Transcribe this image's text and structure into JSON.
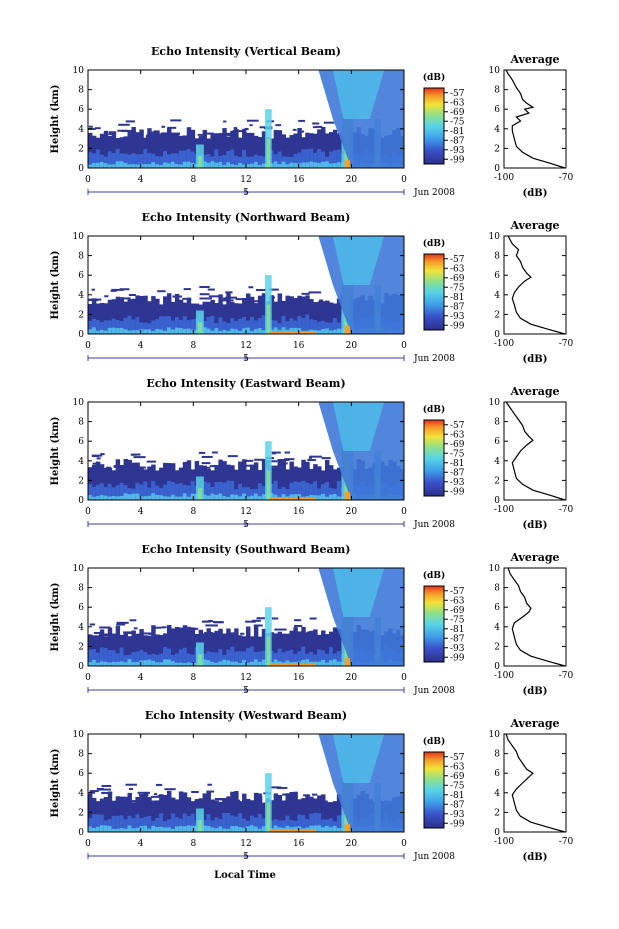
{
  "figure": {
    "xlabel_bottom": "Local Time",
    "date_label": "Jun 2008",
    "day_label": "5"
  },
  "chart_data": [
    {
      "type": "heatmap",
      "title": "Echo Intensity (Vertical Beam)",
      "ylabel": "Height (km)",
      "xlim": [
        0,
        24
      ],
      "ylim": [
        0,
        10
      ],
      "xticks": [
        "0",
        "4",
        "8",
        "12",
        "16",
        "20",
        "0"
      ],
      "yticks": [
        "0",
        "2",
        "4",
        "6",
        "8",
        "10"
      ],
      "colorbar": {
        "label": "(dB)",
        "ticks": [
          "-57",
          "-63",
          "-69",
          "-75",
          "-81",
          "-87",
          "-93",
          "-99"
        ]
      },
      "profile": {
        "type": "line",
        "title": "Average",
        "xlabel": "(dB)",
        "xticks": [
          "-100",
          "-70"
        ],
        "xlim": [
          -100,
          -70
        ],
        "yticks": [
          "0",
          "2",
          "4",
          "6",
          "8",
          "10"
        ],
        "ylim": [
          0,
          10
        ],
        "points": [
          [
            -70.5,
            0
          ],
          [
            -78,
            0.5
          ],
          [
            -86,
            1
          ],
          [
            -91,
            1.6
          ],
          [
            -94,
            2.2
          ],
          [
            -95,
            3
          ],
          [
            -96,
            3.8
          ],
          [
            -96,
            4.3
          ],
          [
            -92,
            4.8
          ],
          [
            -94,
            5.2
          ],
          [
            -88,
            5.6
          ],
          [
            -90,
            6
          ],
          [
            -86,
            6.2
          ],
          [
            -89,
            6.6
          ],
          [
            -91,
            7
          ],
          [
            -92,
            7.6
          ],
          [
            -94,
            8.2
          ],
          [
            -96,
            9
          ],
          [
            -98,
            9.6
          ],
          [
            -99,
            10
          ]
        ]
      }
    },
    {
      "type": "heatmap",
      "title": "Echo Intensity (Northward Beam)",
      "ylabel": "Height (km)",
      "xlim": [
        0,
        24
      ],
      "ylim": [
        0,
        10
      ],
      "xticks": [
        "0",
        "4",
        "8",
        "12",
        "16",
        "20",
        "0"
      ],
      "yticks": [
        "0",
        "2",
        "4",
        "6",
        "8",
        "10"
      ],
      "colorbar": {
        "label": "(dB)",
        "ticks": [
          "-57",
          "-63",
          "-69",
          "-75",
          "-81",
          "-87",
          "-93",
          "-99"
        ]
      },
      "profile": {
        "type": "line",
        "title": "Average",
        "xlabel": "(dB)",
        "xticks": [
          "-100",
          "-70"
        ],
        "xlim": [
          -100,
          -70
        ],
        "yticks": [
          "0",
          "2",
          "4",
          "6",
          "8",
          "10"
        ],
        "ylim": [
          0,
          10
        ],
        "points": [
          [
            -70.5,
            0
          ],
          [
            -79,
            0.5
          ],
          [
            -87,
            1
          ],
          [
            -92,
            1.6
          ],
          [
            -94,
            2.2
          ],
          [
            -95,
            3
          ],
          [
            -96,
            3.6
          ],
          [
            -95,
            4.2
          ],
          [
            -93,
            4.8
          ],
          [
            -90,
            5.4
          ],
          [
            -87,
            5.8
          ],
          [
            -89,
            6.2
          ],
          [
            -91,
            6.8
          ],
          [
            -92,
            7.4
          ],
          [
            -94,
            8
          ],
          [
            -93,
            8.6
          ],
          [
            -96,
            9.2
          ],
          [
            -98,
            10
          ]
        ]
      }
    },
    {
      "type": "heatmap",
      "title": "Echo Intensity (Eastward Beam)",
      "ylabel": "Height (km)",
      "xlim": [
        0,
        24
      ],
      "ylim": [
        0,
        10
      ],
      "xticks": [
        "0",
        "4",
        "8",
        "12",
        "16",
        "20",
        "0"
      ],
      "yticks": [
        "0",
        "2",
        "4",
        "6",
        "8",
        "10"
      ],
      "colorbar": {
        "label": "(dB)",
        "ticks": [
          "-57",
          "-63",
          "-69",
          "-75",
          "-81",
          "-87",
          "-93",
          "-99"
        ]
      },
      "profile": {
        "type": "line",
        "title": "Average",
        "xlabel": "(dB)",
        "xticks": [
          "-100",
          "-70"
        ],
        "xlim": [
          -100,
          -70
        ],
        "yticks": [
          "0",
          "2",
          "4",
          "6",
          "8",
          "10"
        ],
        "ylim": [
          0,
          10
        ],
        "points": [
          [
            -70.5,
            0
          ],
          [
            -78,
            0.5
          ],
          [
            -86,
            1
          ],
          [
            -91,
            1.6
          ],
          [
            -94,
            2.2
          ],
          [
            -95,
            3
          ],
          [
            -96,
            3.8
          ],
          [
            -94,
            4.4
          ],
          [
            -92,
            5
          ],
          [
            -89,
            5.6
          ],
          [
            -86,
            6.1
          ],
          [
            -88,
            6.5
          ],
          [
            -90,
            7
          ],
          [
            -91,
            7.6
          ],
          [
            -93,
            8.2
          ],
          [
            -95,
            8.8
          ],
          [
            -97,
            9.4
          ],
          [
            -99,
            10
          ]
        ]
      }
    },
    {
      "type": "heatmap",
      "title": "Echo Intensity (Southward Beam)",
      "ylabel": "Height (km)",
      "xlim": [
        0,
        24
      ],
      "ylim": [
        0,
        10
      ],
      "xticks": [
        "0",
        "4",
        "8",
        "12",
        "16",
        "20",
        "0"
      ],
      "yticks": [
        "0",
        "2",
        "4",
        "6",
        "8",
        "10"
      ],
      "colorbar": {
        "label": "(dB)",
        "ticks": [
          "-57",
          "-63",
          "-69",
          "-75",
          "-81",
          "-87",
          "-93",
          "-99"
        ]
      },
      "profile": {
        "type": "line",
        "title": "Average",
        "xlabel": "(dB)",
        "xticks": [
          "-100",
          "-70"
        ],
        "xlim": [
          -100,
          -70
        ],
        "yticks": [
          "0",
          "2",
          "4",
          "6",
          "8",
          "10"
        ],
        "ylim": [
          0,
          10
        ],
        "points": [
          [
            -70.5,
            0
          ],
          [
            -79,
            0.5
          ],
          [
            -87,
            1
          ],
          [
            -92,
            1.6
          ],
          [
            -94,
            2.2
          ],
          [
            -95,
            3
          ],
          [
            -96,
            3.8
          ],
          [
            -95,
            4.4
          ],
          [
            -91,
            5
          ],
          [
            -88,
            5.5
          ],
          [
            -87,
            5.9
          ],
          [
            -89,
            6.4
          ],
          [
            -90,
            7
          ],
          [
            -92,
            7.6
          ],
          [
            -93,
            8.2
          ],
          [
            -95,
            8.8
          ],
          [
            -97,
            9.4
          ],
          [
            -98,
            10
          ]
        ]
      }
    },
    {
      "type": "heatmap",
      "title": "Echo Intensity (Westward Beam)",
      "ylabel": "Height (km)",
      "xlim": [
        0,
        24
      ],
      "ylim": [
        0,
        10
      ],
      "xticks": [
        "0",
        "4",
        "8",
        "12",
        "16",
        "20",
        "0"
      ],
      "yticks": [
        "0",
        "2",
        "4",
        "6",
        "8",
        "10"
      ],
      "colorbar": {
        "label": "(dB)",
        "ticks": [
          "-57",
          "-63",
          "-69",
          "-75",
          "-81",
          "-87",
          "-93",
          "-99"
        ]
      },
      "profile": {
        "type": "line",
        "title": "Average",
        "xlabel": "(dB)",
        "xticks": [
          "-100",
          "-70"
        ],
        "xlim": [
          -100,
          -70
        ],
        "yticks": [
          "0",
          "2",
          "4",
          "6",
          "8",
          "10"
        ],
        "ylim": [
          0,
          10
        ],
        "points": [
          [
            -70.5,
            0
          ],
          [
            -79,
            0.5
          ],
          [
            -87,
            1
          ],
          [
            -92,
            1.6
          ],
          [
            -94,
            2.2
          ],
          [
            -95,
            3
          ],
          [
            -96,
            3.8
          ],
          [
            -94,
            4.4
          ],
          [
            -91,
            5
          ],
          [
            -88,
            5.6
          ],
          [
            -86,
            6
          ],
          [
            -89,
            6.4
          ],
          [
            -91,
            7
          ],
          [
            -93,
            7.6
          ],
          [
            -94,
            8.2
          ],
          [
            -96,
            8.8
          ],
          [
            -98,
            9.4
          ],
          [
            -99,
            10
          ]
        ]
      }
    }
  ]
}
